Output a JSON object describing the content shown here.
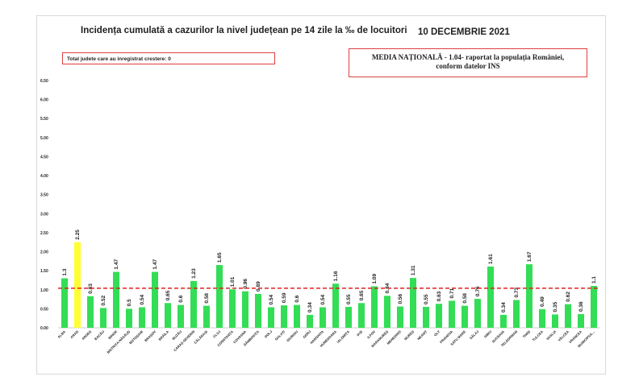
{
  "chart_data": {
    "type": "bar",
    "title": "Incidența cumulată a cazurilor la nivel județean pe 14 zile la ‰ de locuitori",
    "date": "10 DECEMBRIE 2021",
    "info_box": "Total judete care au inregistrat crestere: 0",
    "national_box_line1": "MEDIA NAȚIONALĂ - 1.04-  raportat la populația României,",
    "national_box_line2": "conform datelor INS",
    "national_average": 1.04,
    "ylim": [
      0,
      6.5
    ],
    "yticks": [
      "0.00",
      "0.50",
      "1.00",
      "1.50",
      "2.00",
      "2.50",
      "3.00",
      "3.50",
      "4.00",
      "4.50",
      "5.00",
      "5.50",
      "6.00",
      "6.50"
    ],
    "categories": [
      "ALBA",
      "ARAD",
      "ARGEȘ",
      "BACĂU",
      "BIHOR",
      "BISTRIȚA-NĂSĂUD",
      "BOTOȘANI",
      "BRAȘOV",
      "BRĂILA",
      "BUZĂU",
      "CARAȘ-SEVERIN",
      "CĂLĂRAȘI",
      "CLUJ",
      "CONSTANȚA",
      "COVASNA",
      "DÂMBOVIȚA",
      "DOLJ",
      "GALAȚI",
      "GIURGIU",
      "GORJ",
      "HARGHITA",
      "HUNEDOARA",
      "IALOMIȚA",
      "IAȘI",
      "ILFOV",
      "MARAMUREȘ",
      "MEHEDINȚI",
      "MUREȘ",
      "NEAMȚ",
      "OLT",
      "PRAHOVA",
      "SATU MARE",
      "SĂLAJ",
      "SIBIU",
      "SUCEAVA",
      "TELEORMAN",
      "TIMIȘ",
      "TULCEA",
      "VASLUI",
      "VÂLCEA",
      "VRANCEA",
      "MUNICIPIUL..."
    ],
    "values": [
      1.3,
      2.25,
      0.83,
      0.52,
      1.47,
      0.5,
      0.54,
      1.47,
      0.65,
      0.6,
      1.23,
      0.58,
      1.65,
      1.01,
      0.96,
      0.89,
      0.54,
      0.59,
      0.6,
      0.34,
      0.54,
      1.16,
      0.55,
      0.65,
      1.09,
      0.84,
      0.56,
      1.31,
      0.55,
      0.63,
      0.71,
      0.58,
      0.76,
      1.61,
      0.34,
      0.73,
      1.67,
      0.49,
      0.35,
      0.62,
      0.36,
      1.1
    ],
    "labels": [
      "1.3",
      "2.25",
      "0.83",
      "0.52",
      "1.47",
      "0.5",
      "0.54",
      "1.47",
      "0.65",
      "0.6",
      "1.23",
      "0.58",
      "1.65",
      "1.01",
      "0.96",
      "0.89",
      "0.54",
      "0.59",
      "0.6",
      "0.34",
      "0.54",
      "1.16",
      "0.55",
      "0.65",
      "1.09",
      "0.84",
      "0.56",
      "1.31",
      "0.55",
      "0.63",
      "0.71",
      "0.58",
      "0.76",
      "1.61",
      "0.34",
      "0.73",
      "1.67",
      "0.49",
      "0.35",
      "0.62",
      "0.36",
      "1.1"
    ],
    "highlight_index": 1,
    "colors": {
      "bar": "#33dd55",
      "highlight": "#ffff33",
      "average_line": "#dd2222",
      "axis_text": "#1f1f1f"
    },
    "grid": false
  }
}
